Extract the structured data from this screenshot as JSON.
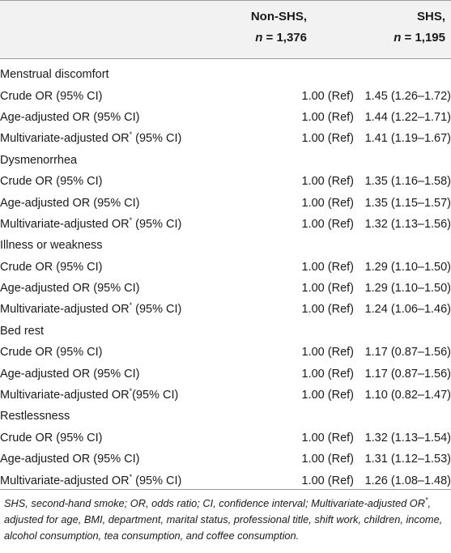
{
  "header": {
    "col1_title": "Non-SHS,",
    "col1_n_label": "n",
    "col1_n_value": " = 1,376",
    "col2_title": "SHS,",
    "col2_n_label": "n",
    "col2_n_value": " = 1,195"
  },
  "rows": [
    {
      "type": "section",
      "label": "Menstrual discomfort"
    },
    {
      "type": "data",
      "label": "Crude OR (95% CI)",
      "sup": "",
      "suffix": "",
      "non_shs": "1.00 (Ref)",
      "shs": "1.45 (1.26–1.72)"
    },
    {
      "type": "data",
      "label": "Age-adjusted OR (95% CI)",
      "sup": "",
      "suffix": "",
      "non_shs": "1.00 (Ref)",
      "shs": "1.44 (1.22–1.71)"
    },
    {
      "type": "data",
      "label": "Multivariate-adjusted OR",
      "sup": "*",
      "suffix": " (95% CI)",
      "non_shs": "1.00 (Ref)",
      "shs": "1.41 (1.19–1.67)"
    },
    {
      "type": "section",
      "label": "Dysmenorrhea"
    },
    {
      "type": "data",
      "label": "Crude OR (95% CI)",
      "sup": "",
      "suffix": "",
      "non_shs": "1.00 (Ref)",
      "shs": "1.35 (1.16–1.58)"
    },
    {
      "type": "data",
      "label": "Age-adjusted OR (95% CI)",
      "sup": "",
      "suffix": "",
      "non_shs": "1.00 (Ref)",
      "shs": "1.35 (1.15–1.57)"
    },
    {
      "type": "data",
      "label": "Multivariate-adjusted OR",
      "sup": "*",
      "suffix": " (95% CI)",
      "non_shs": "1.00 (Ref)",
      "shs": "1.32 (1.13–1.56)"
    },
    {
      "type": "section",
      "label": "Illness or weakness"
    },
    {
      "type": "data",
      "label": "Crude OR (95% CI)",
      "sup": "",
      "suffix": "",
      "non_shs": "1.00 (Ref)",
      "shs": "1.29 (1.10–1.50)"
    },
    {
      "type": "data",
      "label": "Age-adjusted OR (95% CI)",
      "sup": "",
      "suffix": "",
      "non_shs": "1.00 (Ref)",
      "shs": "1.29 (1.10–1.50)"
    },
    {
      "type": "data",
      "label": "Multivariate-adjusted OR",
      "sup": "*",
      "suffix": " (95% CI)",
      "non_shs": "1.00 (Ref)",
      "shs": "1.24 (1.06–1.46)"
    },
    {
      "type": "section",
      "label": "Bed rest"
    },
    {
      "type": "data",
      "label": "Crude OR (95% CI)",
      "sup": "",
      "suffix": "",
      "non_shs": "1.00 (Ref)",
      "shs": "1.17 (0.87–1.56)"
    },
    {
      "type": "data",
      "label": "Age-adjusted OR (95% CI)",
      "sup": "",
      "suffix": "",
      "non_shs": "1.00 (Ref)",
      "shs": "1.17 (0.87–1.56)"
    },
    {
      "type": "data",
      "label": "Multivariate-adjusted OR",
      "sup": "*",
      "suffix": "(95% CI)",
      "non_shs": "1.00 (Ref)",
      "shs": "1.10 (0.82–1.47)"
    },
    {
      "type": "section",
      "label": "Restlessness"
    },
    {
      "type": "data",
      "label": "Crude OR (95% CI)",
      "sup": "",
      "suffix": "",
      "non_shs": "1.00 (Ref)",
      "shs": "1.32 (1.13–1.54)"
    },
    {
      "type": "data",
      "label": "Age-adjusted OR (95% CI)",
      "sup": "",
      "suffix": "",
      "non_shs": "1.00 (Ref)",
      "shs": "1.31 (1.12–1.53)"
    },
    {
      "type": "data",
      "label": "Multivariate-adjusted OR",
      "sup": "*",
      "suffix": " (95% CI)",
      "non_shs": "1.00 (Ref)",
      "shs": "1.26 (1.08–1.48)"
    }
  ],
  "footnote": {
    "part1": "SHS, second-hand smoke; OR, odds ratio; CI, confidence interval; Multivariate-adjusted OR",
    "sup": "*",
    "part2": ", adjusted for age, BMI, department, marital status, professional title, shift work, children, income, alcohol consumption, tea consumption, and coffee consumption."
  }
}
